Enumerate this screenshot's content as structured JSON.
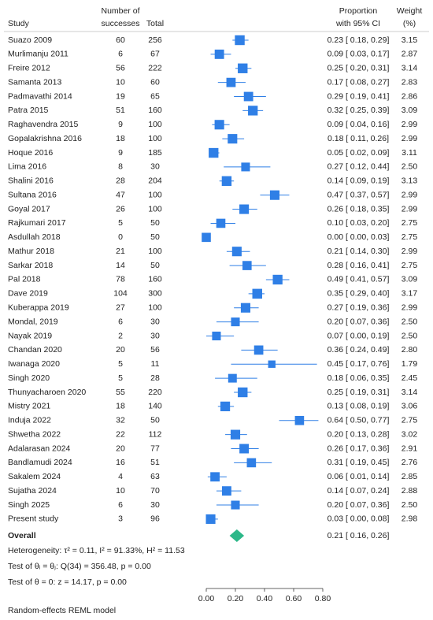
{
  "chart_data": {
    "type": "forest",
    "headers": {
      "study": "Study",
      "successes": [
        "Number of",
        "successes"
      ],
      "total": "Total",
      "ci": [
        "Proportion",
        "with 95% CI"
      ],
      "weight": [
        "Weight",
        "(%)"
      ]
    },
    "categories": [
      "Suazo 2009",
      "Murlimanju 2011",
      "Freire 2012",
      "Samanta 2013",
      "Padmavathi 2014",
      "Patra 2015",
      "Raghavendra 2015",
      "Gopalakrishna 2016",
      "Hoque 2016",
      "Lima 2016",
      "Shalini 2016",
      "Sultana 2016",
      "Goyal 2017",
      "Rajkumari 2017",
      "Asdullah 2018",
      "Mathur 2018",
      "Sarkar 2018",
      "Pal 2018",
      "Dave 2019",
      "Kuberappa 2019",
      "Mondal, 2019",
      "Nayak 2019",
      "Chandan 2020",
      "Iwanaga 2020",
      "Singh 2020",
      "Thunyacharoen 2020",
      "Mistry 2021",
      "Induja 2022",
      "Shwetha 2022",
      "Adalarasan 2024",
      "Bandlamudi 2024",
      "Sakalem 2024",
      "Sujatha 2024",
      "Singh 2025",
      "Present study"
    ],
    "successes": [
      60,
      6,
      56,
      10,
      19,
      51,
      9,
      18,
      9,
      8,
      28,
      47,
      26,
      5,
      0,
      21,
      14,
      78,
      104,
      27,
      6,
      2,
      20,
      5,
      5,
      55,
      18,
      32,
      22,
      20,
      16,
      4,
      10,
      6,
      3
    ],
    "totals": [
      256,
      67,
      222,
      60,
      65,
      160,
      100,
      100,
      185,
      30,
      204,
      100,
      100,
      50,
      50,
      100,
      50,
      160,
      300,
      100,
      30,
      30,
      56,
      11,
      28,
      220,
      140,
      50,
      112,
      77,
      51,
      63,
      70,
      30,
      96
    ],
    "values": [
      0.23,
      0.09,
      0.25,
      0.17,
      0.29,
      0.32,
      0.09,
      0.18,
      0.05,
      0.27,
      0.14,
      0.47,
      0.26,
      0.1,
      0.0,
      0.21,
      0.28,
      0.49,
      0.35,
      0.27,
      0.2,
      0.07,
      0.36,
      0.45,
      0.18,
      0.25,
      0.13,
      0.64,
      0.2,
      0.26,
      0.31,
      0.06,
      0.14,
      0.2,
      0.03
    ],
    "ci_low": [
      0.18,
      0.03,
      0.2,
      0.08,
      0.19,
      0.25,
      0.04,
      0.11,
      0.02,
      0.12,
      0.09,
      0.37,
      0.18,
      0.03,
      0.0,
      0.14,
      0.16,
      0.41,
      0.29,
      0.19,
      0.07,
      0.0,
      0.24,
      0.17,
      0.06,
      0.19,
      0.08,
      0.5,
      0.13,
      0.17,
      0.19,
      0.01,
      0.07,
      0.07,
      0.0
    ],
    "ci_high": [
      0.29,
      0.17,
      0.31,
      0.27,
      0.41,
      0.39,
      0.16,
      0.26,
      0.09,
      0.44,
      0.19,
      0.57,
      0.35,
      0.2,
      0.03,
      0.3,
      0.41,
      0.57,
      0.4,
      0.36,
      0.36,
      0.19,
      0.49,
      0.76,
      0.35,
      0.31,
      0.19,
      0.77,
      0.28,
      0.36,
      0.45,
      0.14,
      0.24,
      0.36,
      0.08
    ],
    "value_labels": [
      "0.23 [ 0.18, 0.29]",
      "0.09 [ 0.03, 0.17]",
      "0.25 [ 0.20, 0.31]",
      "0.17 [ 0.08, 0.27]",
      "0.29 [ 0.19, 0.41]",
      "0.32 [ 0.25, 0.39]",
      "0.09 [ 0.04, 0.16]",
      "0.18 [ 0.11, 0.26]",
      "0.05 [ 0.02, 0.09]",
      "0.27 [ 0.12, 0.44]",
      "0.14 [ 0.09, 0.19]",
      "0.47 [ 0.37, 0.57]",
      "0.26 [ 0.18, 0.35]",
      "0.10 [ 0.03, 0.20]",
      "0.00 [ 0.00, 0.03]",
      "0.21 [ 0.14, 0.30]",
      "0.28 [ 0.16, 0.41]",
      "0.49 [ 0.41, 0.57]",
      "0.35 [ 0.29, 0.40]",
      "0.27 [ 0.19, 0.36]",
      "0.20 [ 0.07, 0.36]",
      "0.07 [ 0.00, 0.19]",
      "0.36 [ 0.24, 0.49]",
      "0.45 [ 0.17, 0.76]",
      "0.18 [ 0.06, 0.35]",
      "0.25 [ 0.19, 0.31]",
      "0.13 [ 0.08, 0.19]",
      "0.64 [ 0.50, 0.77]",
      "0.20 [ 0.13, 0.28]",
      "0.26 [ 0.17, 0.36]",
      "0.31 [ 0.19, 0.45]",
      "0.06 [ 0.01, 0.14]",
      "0.14 [ 0.07, 0.24]",
      "0.20 [ 0.07, 0.36]",
      "0.03 [ 0.00, 0.08]"
    ],
    "weights": [
      3.15,
      2.87,
      3.14,
      2.83,
      2.86,
      3.09,
      2.99,
      2.99,
      3.11,
      2.5,
      3.13,
      2.99,
      2.99,
      2.75,
      2.75,
      2.99,
      2.75,
      3.09,
      3.17,
      2.99,
      2.5,
      2.5,
      2.8,
      1.79,
      2.45,
      3.14,
      3.06,
      2.75,
      3.02,
      2.91,
      2.76,
      2.85,
      2.88,
      2.5,
      2.98
    ],
    "weight_labels": [
      "3.15",
      "2.87",
      "3.14",
      "2.83",
      "2.86",
      "3.09",
      "2.99",
      "2.99",
      "3.11",
      "2.50",
      "3.13",
      "2.99",
      "2.99",
      "2.75",
      "2.75",
      "2.99",
      "2.75",
      "3.09",
      "3.17",
      "2.99",
      "2.50",
      "2.50",
      "2.80",
      "1.79",
      "2.45",
      "3.14",
      "3.06",
      "2.75",
      "3.02",
      "2.91",
      "2.76",
      "2.85",
      "2.88",
      "2.50",
      "2.98"
    ],
    "overall": {
      "label": "Overall",
      "value": 0.21,
      "ci_low": 0.16,
      "ci_high": 0.26,
      "value_label": "0.21 [ 0.16, 0.26]"
    },
    "notes": [
      "Heterogeneity: τ² = 0.11, I² = 91.33%, H² = 11.53",
      "Test of θᵢ = θⱼ: Q(34) = 356.48, p = 0.00",
      "Test of θ = 0: z = 14.17, p = 0.00"
    ],
    "footer": "Random-effects REML model",
    "xlim": [
      0,
      0.8
    ],
    "xticks": [
      {
        "value": 0,
        "label": "0.00"
      },
      {
        "value": 0.2,
        "label": "0.20"
      },
      {
        "value": 0.4,
        "label": "0.40"
      },
      {
        "value": 0.6,
        "label": "0.60"
      },
      {
        "value": 0.8,
        "label": "0.80"
      }
    ],
    "color": "#2f7fe6",
    "overall_color": "#2db889"
  }
}
